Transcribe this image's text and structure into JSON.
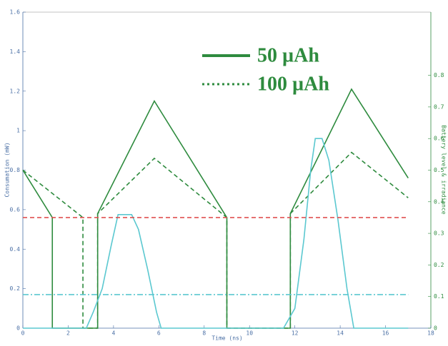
{
  "chart_data": {
    "type": "line",
    "x_label": "Time (ns)",
    "y_label": "Consumation (mW)",
    "y2_label": "Battery level & irradiance",
    "xlim": [
      0,
      18
    ],
    "xticks": [
      0,
      2,
      4,
      6,
      8,
      10,
      12,
      14,
      16,
      18
    ],
    "ylim": [
      0,
      1.6
    ],
    "yticks": [
      0,
      0.2,
      0.4,
      0.6,
      0.8,
      1,
      1.2,
      1.4,
      1.6
    ],
    "y2lim": [
      0,
      1.0
    ],
    "y2ticks": [
      0,
      0.1,
      0.2,
      0.3,
      0.4,
      0.5,
      0.6,
      0.7,
      0.8
    ],
    "series": [
      {
        "name": "50 µAh",
        "color": "#2e8b3e",
        "style": "solid",
        "x": [
          0,
          1.3,
          1.3,
          3.3,
          3.3,
          5.8,
          9.0,
          9.0,
          11.8,
          11.8,
          14.5,
          17
        ],
        "values": [
          0.8,
          0.56,
          0,
          0,
          0.58,
          1.15,
          0.56,
          0,
          0,
          0.58,
          1.21,
          0.76
        ]
      },
      {
        "name": "100 µAh",
        "color": "#2e8b3e",
        "style": "dashed",
        "x": [
          0,
          2.65,
          2.65,
          3.3,
          3.3,
          5.8,
          9.0,
          9.0,
          11.8,
          11.8,
          14.5,
          17
        ],
        "values": [
          0.8,
          0.56,
          0,
          0,
          0.58,
          0.86,
          0.56,
          0,
          0,
          0.58,
          0.89,
          0.66
        ]
      },
      {
        "color": "#5bc8d0",
        "style": "solid",
        "x": [
          0,
          2.8,
          3.1,
          3.5,
          3.9,
          4.2,
          4.8,
          5.1,
          5.5,
          5.9,
          6.1,
          11.5,
          12.0,
          12.4,
          12.7,
          12.9,
          13.2,
          13.5,
          13.9,
          14.3,
          14.6,
          17
        ],
        "values": [
          0,
          0,
          0.08,
          0.2,
          0.42,
          0.575,
          0.575,
          0.5,
          0.3,
          0.08,
          0,
          0,
          0.1,
          0.45,
          0.8,
          0.96,
          0.96,
          0.85,
          0.55,
          0.2,
          0,
          0
        ]
      },
      {
        "color": "#e05050",
        "style": "dashed",
        "x": [
          0,
          17
        ],
        "values": [
          0.56,
          0.56
        ]
      },
      {
        "color": "#5bc8d0",
        "style": "dashdot",
        "x": [
          0,
          17
        ],
        "values": [
          0.17,
          0.17
        ]
      }
    ]
  }
}
